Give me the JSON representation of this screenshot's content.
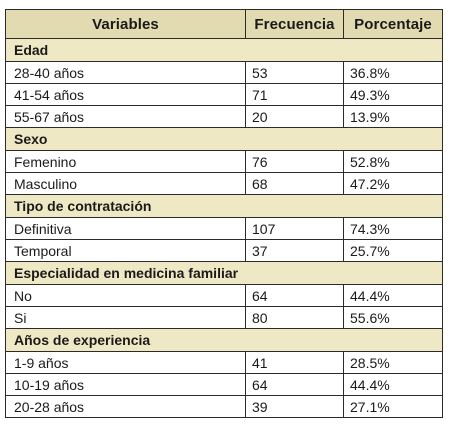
{
  "table": {
    "headers": [
      "Variables",
      "Frecuencia",
      "Porcentaje"
    ],
    "sections": [
      {
        "title": "Edad",
        "rows": [
          {
            "label": "28-40 años",
            "freq": "53",
            "pct": "36.8%"
          },
          {
            "label": "41-54 años",
            "freq": "71",
            "pct": "49.3%"
          },
          {
            "label": "55-67 años",
            "freq": "20",
            "pct": "13.9%"
          }
        ]
      },
      {
        "title": "Sexo",
        "rows": [
          {
            "label": "Femenino",
            "freq": "76",
            "pct": "52.8%"
          },
          {
            "label": "Masculino",
            "freq": "68",
            "pct": "47.2%"
          }
        ]
      },
      {
        "title": "Tipo de contratación",
        "rows": [
          {
            "label": "Definitiva",
            "freq": "107",
            "pct": "74.3%"
          },
          {
            "label": "Temporal",
            "freq": "37",
            "pct": "25.7%"
          }
        ]
      },
      {
        "title": "Especialidad en medicina familiar",
        "rows": [
          {
            "label": "No",
            "freq": "64",
            "pct": "44.4%"
          },
          {
            "label": "Si",
            "freq": "80",
            "pct": "55.6%"
          }
        ]
      },
      {
        "title": "Años de experiencia",
        "rows": [
          {
            "label": "1-9 años",
            "freq": "41",
            "pct": "28.5%"
          },
          {
            "label": "10-19 años",
            "freq": "64",
            "pct": "44.4%"
          },
          {
            "label": "20-28 años",
            "freq": "39",
            "pct": "27.1%"
          }
        ]
      }
    ]
  },
  "colors": {
    "header_bg": "#e2dab0",
    "section_bg": "#efe8c4",
    "border": "#2b2b2b"
  }
}
